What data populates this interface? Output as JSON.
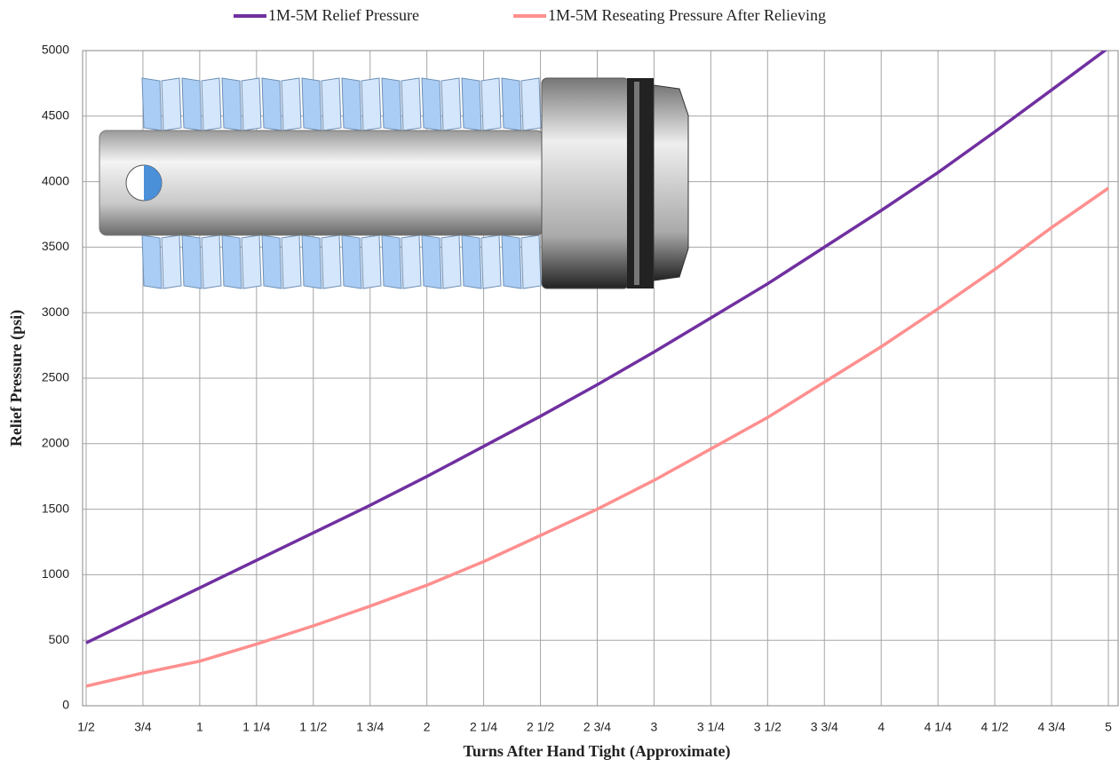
{
  "chart_data": {
    "type": "line",
    "x_label": "Turns After Hand Tight (Approximate)",
    "y_label": "Relief Pressure (psi)",
    "x": [
      0.5,
      0.75,
      1,
      1.25,
      1.5,
      1.75,
      2,
      2.25,
      2.5,
      2.75,
      3,
      3.25,
      3.5,
      3.75,
      4,
      4.25,
      4.5,
      4.75,
      5
    ],
    "series": [
      {
        "name": "1M-5M Relief Pressure",
        "color": "#7030a0",
        "values": [
          480,
          690,
          900,
          1110,
          1320,
          1530,
          1750,
          1980,
          2210,
          2450,
          2700,
          2960,
          3220,
          3500,
          3780,
          4070,
          4380,
          4700,
          5020
        ]
      },
      {
        "name": "1M-5M Reseating Pressure After Relieving",
        "color": "#ff8f8f",
        "values": [
          150,
          250,
          340,
          470,
          610,
          760,
          920,
          1100,
          1300,
          1500,
          1720,
          1960,
          2200,
          2470,
          2740,
          3030,
          3330,
          3650,
          3950
        ]
      }
    ],
    "xlim": [
      0.5,
      5
    ],
    "xticks": [
      {
        "value": 0.5,
        "label": "1/2"
      },
      {
        "value": 0.75,
        "label": "3/4"
      },
      1,
      {
        "value": 1.25,
        "label": "1 1/4"
      },
      {
        "value": 1.5,
        "label": "1 1/2"
      },
      {
        "value": 1.75,
        "label": "1 3/4"
      },
      2,
      {
        "value": 2.25,
        "label": "2 1/4"
      },
      {
        "value": 2.5,
        "label": "2 1/2"
      },
      {
        "value": 2.75,
        "label": "2 3/4"
      },
      3,
      {
        "value": 3.25,
        "label": "3 1/4"
      },
      {
        "value": 3.5,
        "label": "3 1/2"
      },
      {
        "value": 3.75,
        "label": "3 3/4"
      },
      4,
      {
        "value": 4.25,
        "label": "4 1/4"
      },
      {
        "value": 4.5,
        "label": "4 1/2"
      },
      {
        "value": 4.75,
        "label": "4 3/4"
      },
      5
    ],
    "ylim": [
      0,
      5000
    ],
    "yticks": [
      0,
      500,
      1000,
      1500,
      2000,
      2500,
      3000,
      3500,
      4000,
      4500,
      5000
    ],
    "grid": true,
    "legend": "top"
  }
}
